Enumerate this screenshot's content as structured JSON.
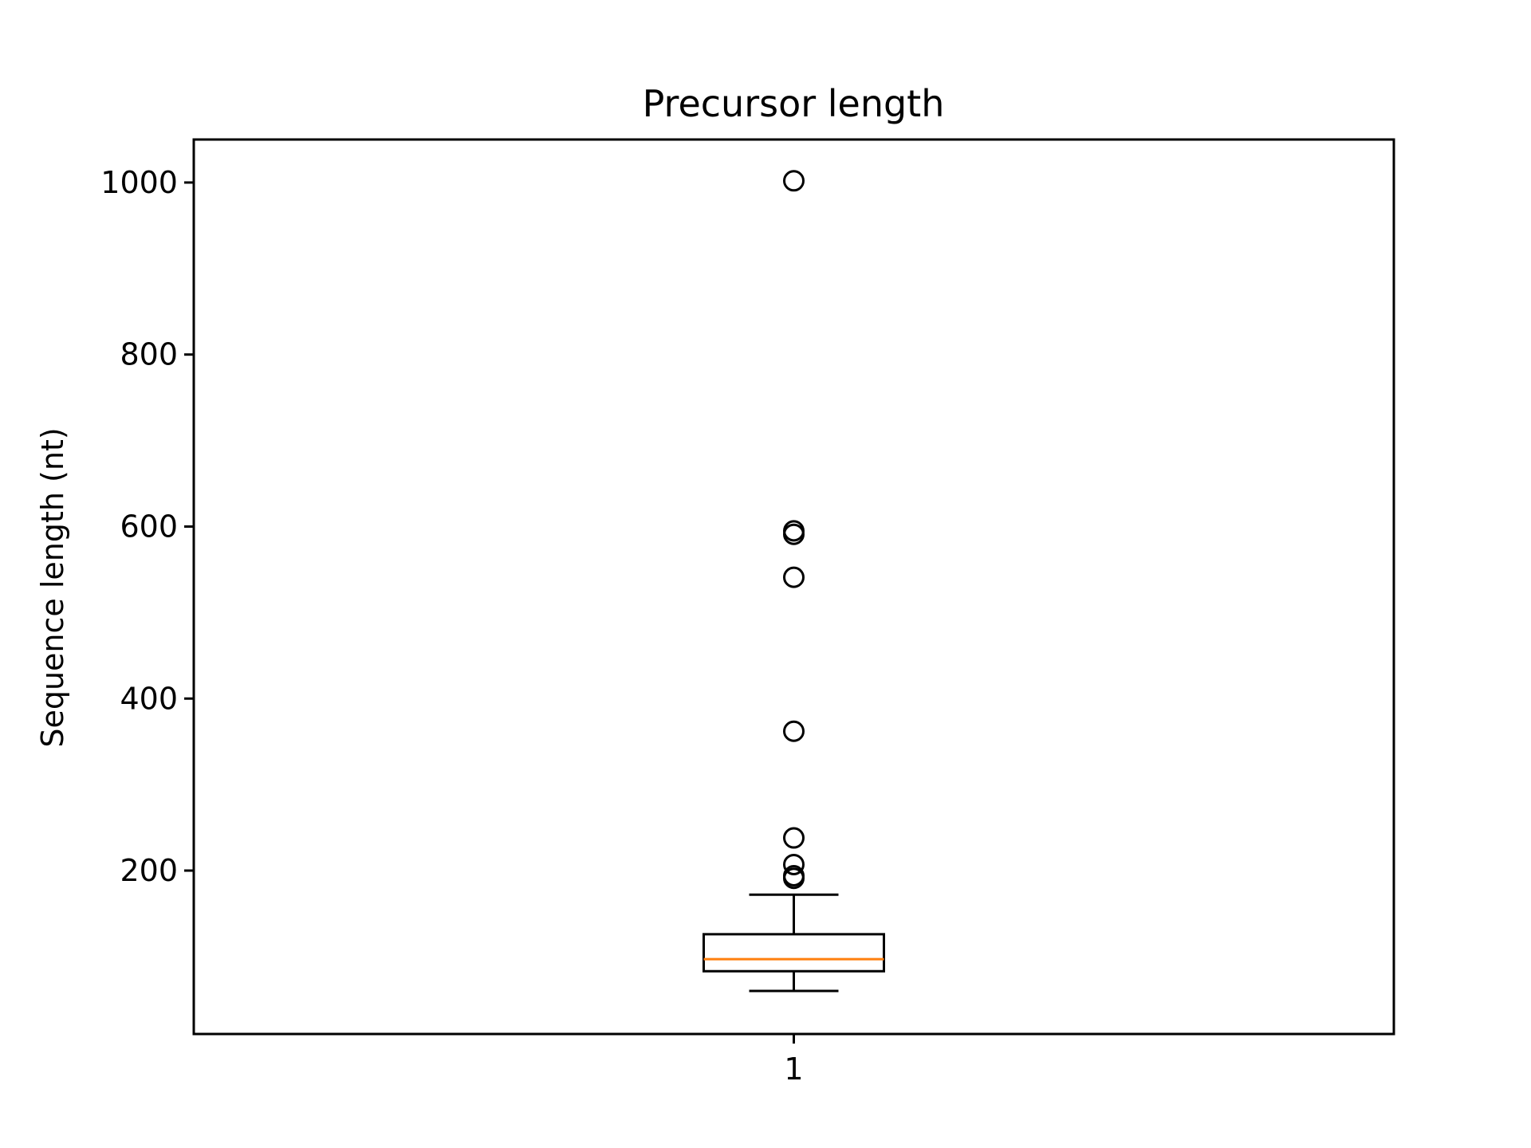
{
  "chart_data": {
    "type": "box",
    "title": "Precursor length",
    "xlabel": "",
    "ylabel": "Sequence length (nt)",
    "ylim": [
      10,
      1050
    ],
    "y_ticks": [
      200,
      400,
      600,
      800,
      1000
    ],
    "x_ticks": [
      "1"
    ],
    "grid": false,
    "series": [
      {
        "category": "1",
        "whisker_low": 60,
        "q1": 83,
        "median": 97,
        "q3": 126,
        "whisker_high": 172,
        "outliers": [
          1002,
          595,
          591,
          541,
          362,
          238,
          207,
          194,
          191
        ]
      }
    ],
    "colors": {
      "box": "#000000",
      "median": "#ff7f0e",
      "frame": "#000000"
    }
  }
}
